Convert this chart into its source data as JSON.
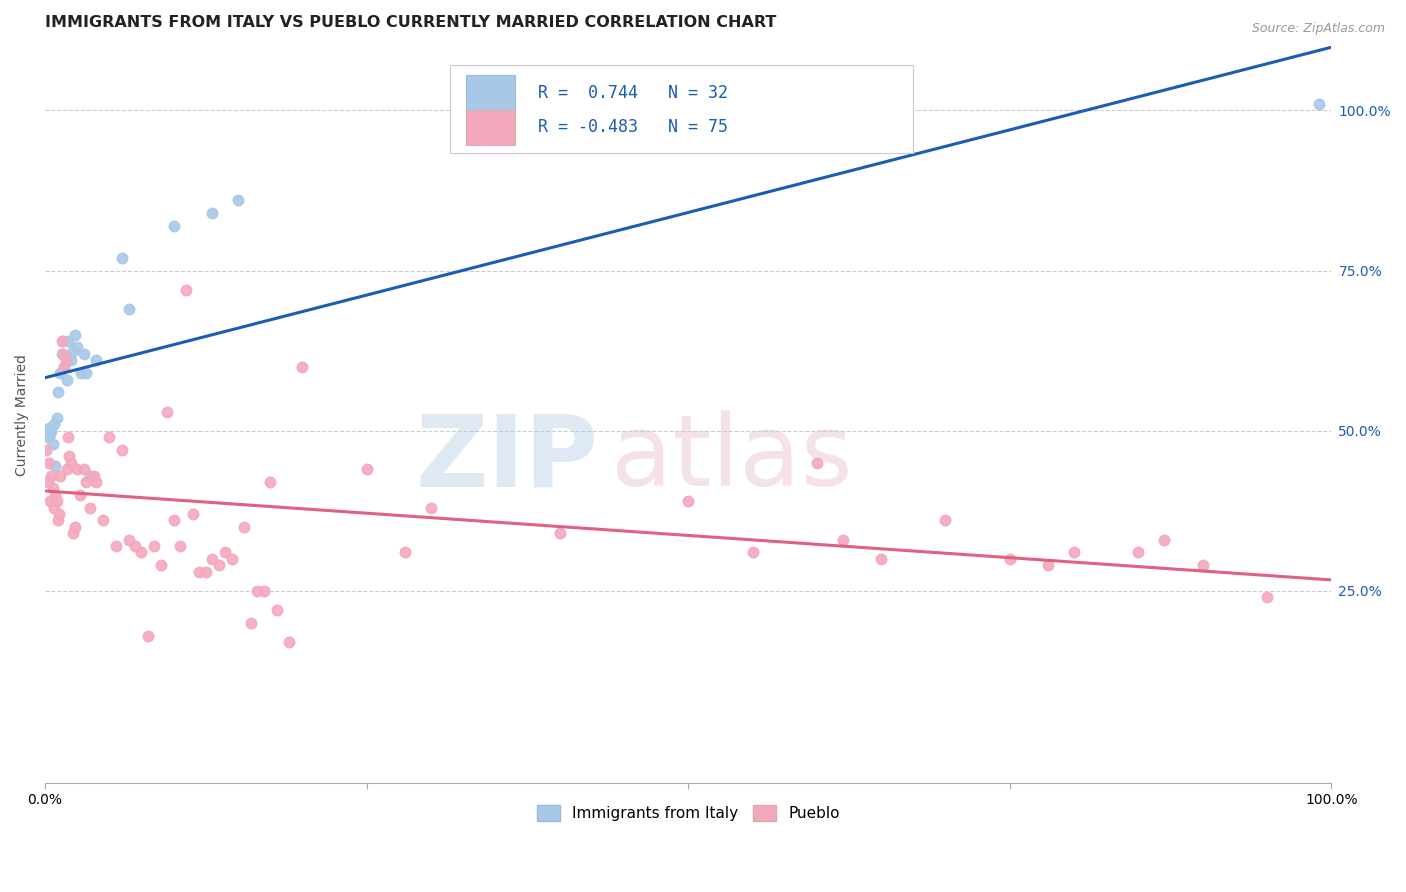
{
  "title": "IMMIGRANTS FROM ITALY VS PUEBLO CURRENTLY MARRIED CORRELATION CHART",
  "source": "Source: ZipAtlas.com",
  "ylabel": "Currently Married",
  "xlim": [
    0.0,
    1.0
  ],
  "ylim": [
    -0.05,
    1.1
  ],
  "y_ticks": [
    0.25,
    0.5,
    0.75,
    1.0
  ],
  "y_tick_labels": [
    "25.0%",
    "50.0%",
    "75.0%",
    "100.0%"
  ],
  "legend_italy_R": "0.744",
  "legend_italy_N": "32",
  "legend_pueblo_R": "-0.483",
  "legend_pueblo_N": "75",
  "italy_color": "#a8c8e8",
  "pueblo_color": "#f4a8bc",
  "italy_line_color": "#1a5db5",
  "pueblo_line_color": "#e06080",
  "italy_scatter": [
    [
      0.001,
      0.5
    ],
    [
      0.002,
      0.49
    ],
    [
      0.003,
      0.505
    ],
    [
      0.004,
      0.495
    ],
    [
      0.005,
      0.5
    ],
    [
      0.006,
      0.48
    ],
    [
      0.007,
      0.51
    ],
    [
      0.008,
      0.445
    ],
    [
      0.009,
      0.52
    ],
    [
      0.01,
      0.56
    ],
    [
      0.012,
      0.59
    ],
    [
      0.013,
      0.62
    ],
    [
      0.014,
      0.64
    ],
    [
      0.015,
      0.6
    ],
    [
      0.016,
      0.615
    ],
    [
      0.017,
      0.58
    ],
    [
      0.018,
      0.64
    ],
    [
      0.02,
      0.61
    ],
    [
      0.022,
      0.625
    ],
    [
      0.023,
      0.65
    ],
    [
      0.025,
      0.63
    ],
    [
      0.028,
      0.59
    ],
    [
      0.03,
      0.62
    ],
    [
      0.032,
      0.59
    ],
    [
      0.035,
      0.43
    ],
    [
      0.04,
      0.61
    ],
    [
      0.06,
      0.77
    ],
    [
      0.065,
      0.69
    ],
    [
      0.1,
      0.82
    ],
    [
      0.13,
      0.84
    ],
    [
      0.15,
      0.86
    ],
    [
      0.99,
      1.01
    ]
  ],
  "pueblo_scatter": [
    [
      0.001,
      0.47
    ],
    [
      0.002,
      0.42
    ],
    [
      0.003,
      0.45
    ],
    [
      0.004,
      0.39
    ],
    [
      0.005,
      0.43
    ],
    [
      0.006,
      0.41
    ],
    [
      0.007,
      0.38
    ],
    [
      0.008,
      0.4
    ],
    [
      0.009,
      0.39
    ],
    [
      0.01,
      0.36
    ],
    [
      0.011,
      0.37
    ],
    [
      0.012,
      0.43
    ],
    [
      0.013,
      0.64
    ],
    [
      0.014,
      0.62
    ],
    [
      0.015,
      0.6
    ],
    [
      0.016,
      0.61
    ],
    [
      0.017,
      0.44
    ],
    [
      0.018,
      0.49
    ],
    [
      0.019,
      0.46
    ],
    [
      0.02,
      0.45
    ],
    [
      0.022,
      0.34
    ],
    [
      0.023,
      0.35
    ],
    [
      0.025,
      0.44
    ],
    [
      0.027,
      0.4
    ],
    [
      0.03,
      0.44
    ],
    [
      0.032,
      0.42
    ],
    [
      0.035,
      0.38
    ],
    [
      0.038,
      0.43
    ],
    [
      0.04,
      0.42
    ],
    [
      0.045,
      0.36
    ],
    [
      0.05,
      0.49
    ],
    [
      0.055,
      0.32
    ],
    [
      0.06,
      0.47
    ],
    [
      0.065,
      0.33
    ],
    [
      0.07,
      0.32
    ],
    [
      0.075,
      0.31
    ],
    [
      0.08,
      0.18
    ],
    [
      0.085,
      0.32
    ],
    [
      0.09,
      0.29
    ],
    [
      0.095,
      0.53
    ],
    [
      0.1,
      0.36
    ],
    [
      0.105,
      0.32
    ],
    [
      0.11,
      0.72
    ],
    [
      0.115,
      0.37
    ],
    [
      0.12,
      0.28
    ],
    [
      0.125,
      0.28
    ],
    [
      0.13,
      0.3
    ],
    [
      0.135,
      0.29
    ],
    [
      0.14,
      0.31
    ],
    [
      0.145,
      0.3
    ],
    [
      0.155,
      0.35
    ],
    [
      0.16,
      0.2
    ],
    [
      0.165,
      0.25
    ],
    [
      0.17,
      0.25
    ],
    [
      0.175,
      0.42
    ],
    [
      0.18,
      0.22
    ],
    [
      0.19,
      0.17
    ],
    [
      0.2,
      0.6
    ],
    [
      0.25,
      0.44
    ],
    [
      0.28,
      0.31
    ],
    [
      0.3,
      0.38
    ],
    [
      0.4,
      0.34
    ],
    [
      0.5,
      0.39
    ],
    [
      0.55,
      0.31
    ],
    [
      0.6,
      0.45
    ],
    [
      0.62,
      0.33
    ],
    [
      0.65,
      0.3
    ],
    [
      0.7,
      0.36
    ],
    [
      0.75,
      0.3
    ],
    [
      0.78,
      0.29
    ],
    [
      0.8,
      0.31
    ],
    [
      0.85,
      0.31
    ],
    [
      0.87,
      0.33
    ],
    [
      0.9,
      0.29
    ],
    [
      0.95,
      0.24
    ]
  ],
  "background_color": "#ffffff",
  "grid_color": "#cccccc"
}
